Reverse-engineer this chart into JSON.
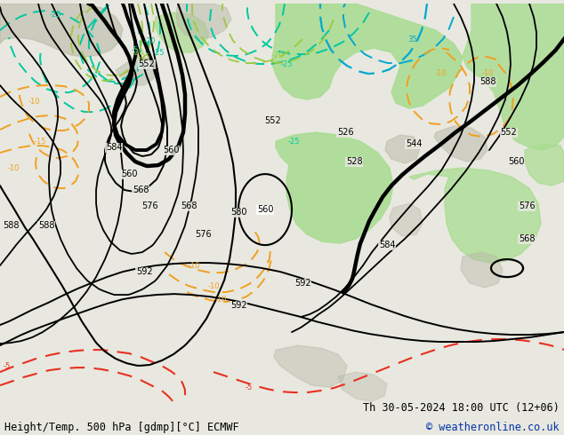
{
  "title_left": "Height/Temp. 500 hPa [gdmp][°C] ECMWF",
  "title_right": "Th 30-05-2024 18:00 UTC (12+06)",
  "copyright": "© weatheronline.co.uk",
  "bg_color": "#e8e8e0",
  "map_color": "#e0e0d8",
  "green_color": "#a8dc90",
  "gray_color": "#b8b8a8",
  "black_line_color": "#000000",
  "cyan_color": "#00c8a0",
  "cyan2_color": "#00a8d0",
  "orange_color": "#f0a020",
  "red_color": "#e83020",
  "green_contour_color": "#a0c840",
  "label_fs": 7,
  "title_fs": 8.5
}
